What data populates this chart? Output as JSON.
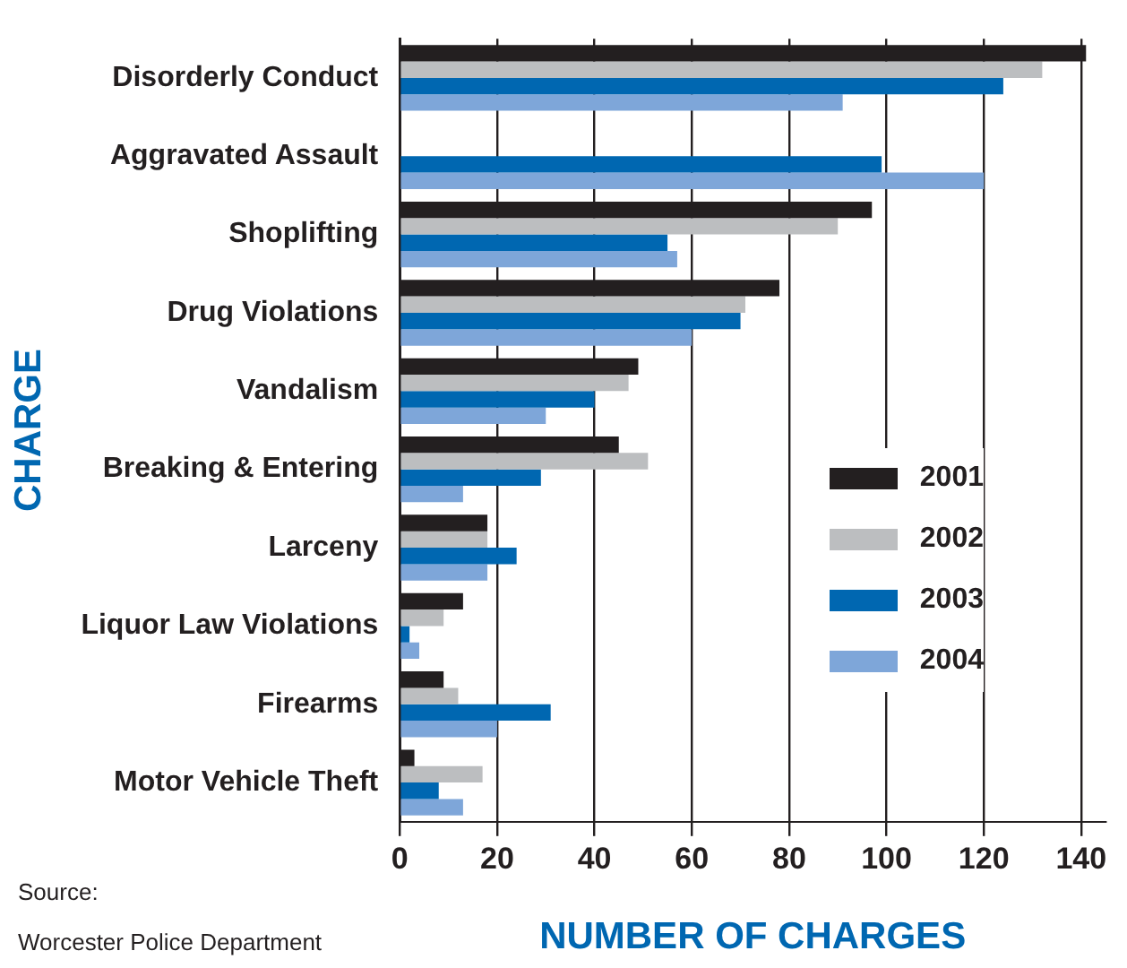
{
  "chart_data": {
    "type": "bar",
    "orientation": "horizontal",
    "xlabel": "NUMBER OF CHARGES",
    "ylabel": "CHARGE",
    "categories": [
      "Disorderly Conduct",
      "Aggravated Assault",
      "Shoplifting",
      "Drug Violations",
      "Vandalism",
      "Breaking & Entering",
      "Larceny",
      "Liquor Law Violations",
      "Firearms",
      "Motor Vehicle Theft"
    ],
    "series": [
      {
        "name": "2001",
        "color": "#231f20",
        "values": [
          141,
          null,
          97,
          78,
          49,
          45,
          18,
          13,
          9,
          3
        ]
      },
      {
        "name": "2002",
        "color": "#bcbec0",
        "values": [
          132,
          null,
          90,
          71,
          47,
          51,
          18,
          9,
          12,
          17
        ]
      },
      {
        "name": "2003",
        "color": "#0067b1",
        "values": [
          124,
          99,
          55,
          70,
          40,
          29,
          24,
          2,
          31,
          8
        ]
      },
      {
        "name": "2004",
        "color": "#7ea6d9",
        "values": [
          91,
          120,
          57,
          60,
          30,
          13,
          18,
          4,
          20,
          13
        ]
      }
    ],
    "xlim": [
      0,
      145
    ],
    "xticks": [
      0,
      20,
      40,
      60,
      80,
      100,
      120,
      140
    ],
    "grid": "x",
    "legend": "right",
    "annotations": [
      "Source:",
      "Worcester Police Department"
    ]
  }
}
